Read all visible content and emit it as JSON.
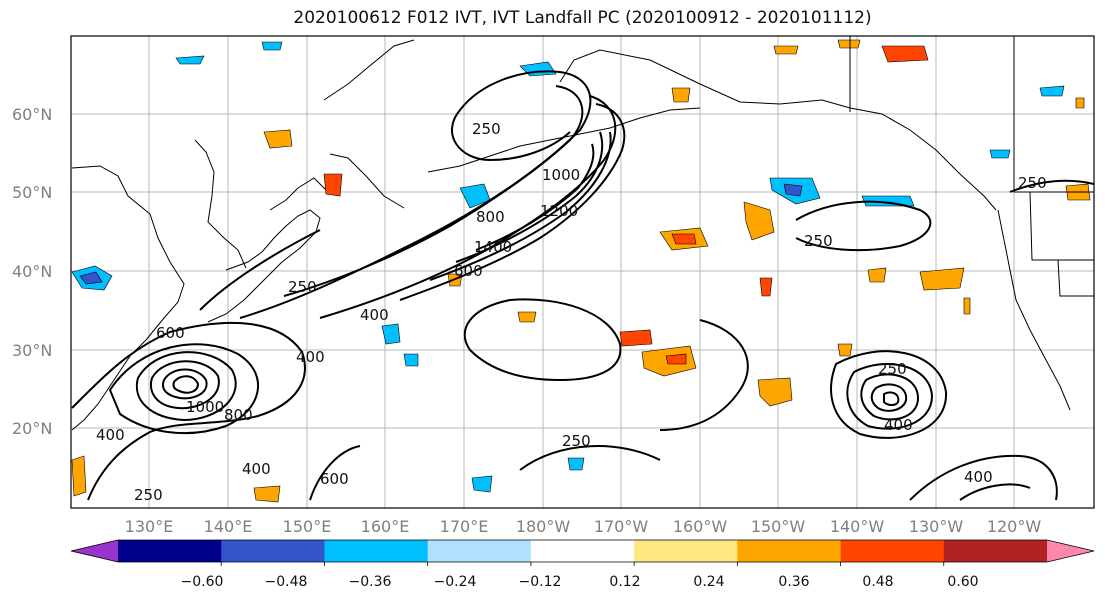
{
  "title": "2020100612 F012 IVT, IVT Landfall PC (2020100912 - 2020101112)",
  "lat_labels": [
    "60°N",
    "50°N",
    "40°N",
    "30°N",
    "20°N"
  ],
  "lon_labels": [
    "130°E",
    "140°E",
    "150°E",
    "160°E",
    "170°E",
    "180°W",
    "170°W",
    "160°W",
    "150°W",
    "140°W",
    "130°W",
    "120°W"
  ],
  "colorbar": {
    "colors": [
      "#9933cc",
      "#00008b",
      "#3355cc",
      "#00bfff",
      "#b0e0ff",
      "#ffffff",
      "#ffe680",
      "#ffa500",
      "#ff4500",
      "#b22222",
      "#ff88aa"
    ],
    "tick_labels": [
      "−0.60",
      "−0.48",
      "−0.36",
      "−0.24",
      "−0.12",
      "0.12",
      "0.24",
      "0.36",
      "0.48",
      "0.60"
    ]
  },
  "contour_labels": [
    "250",
    "250",
    "250",
    "250",
    "250",
    "250",
    "250",
    "400",
    "400",
    "400",
    "400",
    "400",
    "400",
    "600",
    "600",
    "600",
    "800",
    "800",
    "1000",
    "1000",
    "1200",
    "1400"
  ]
}
